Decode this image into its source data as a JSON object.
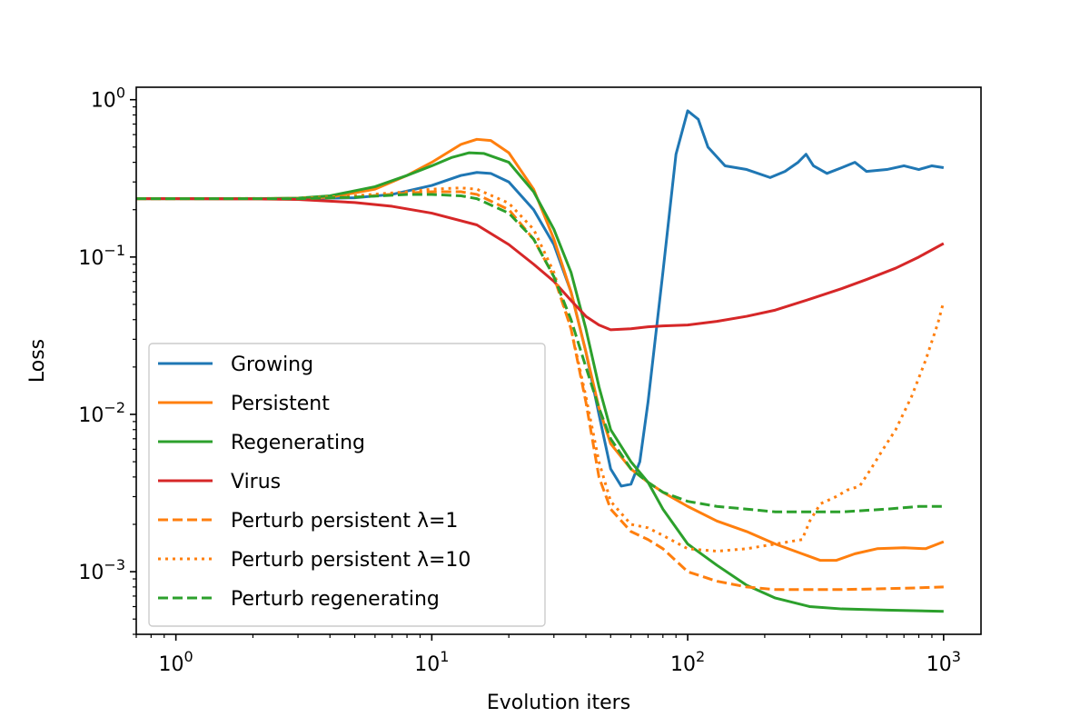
{
  "chart_data": {
    "type": "line",
    "title": "",
    "xlabel": "Evolution iters",
    "ylabel": "Loss",
    "xscale": "log",
    "yscale": "log",
    "xlim": [
      0.7,
      1400
    ],
    "ylim": [
      0.0004,
      1.2
    ],
    "grid": false,
    "legend_position": "lower-left",
    "x_ticks": [
      {
        "value": 1,
        "label": "10^0"
      },
      {
        "value": 10,
        "label": "10^1"
      },
      {
        "value": 100,
        "label": "10^2"
      },
      {
        "value": 1000,
        "label": "10^3"
      }
    ],
    "y_ticks": [
      {
        "value": 0.001,
        "label": "10^-3"
      },
      {
        "value": 0.01,
        "label": "10^-2"
      },
      {
        "value": 0.1,
        "label": "10^-1"
      },
      {
        "value": 1,
        "label": "10^0"
      }
    ],
    "series": [
      {
        "name": "Growing",
        "color": "#1f77b4",
        "dash": "solid",
        "points": [
          [
            0.7,
            0.235
          ],
          [
            1,
            0.235
          ],
          [
            2,
            0.235
          ],
          [
            3,
            0.235
          ],
          [
            5,
            0.238
          ],
          [
            7,
            0.25
          ],
          [
            10,
            0.285
          ],
          [
            13,
            0.33
          ],
          [
            15,
            0.345
          ],
          [
            17,
            0.34
          ],
          [
            20,
            0.3
          ],
          [
            25,
            0.2
          ],
          [
            30,
            0.12
          ],
          [
            35,
            0.06
          ],
          [
            40,
            0.025
          ],
          [
            45,
            0.01
          ],
          [
            50,
            0.0045
          ],
          [
            55,
            0.0035
          ],
          [
            60,
            0.0036
          ],
          [
            65,
            0.005
          ],
          [
            70,
            0.012
          ],
          [
            80,
            0.08
          ],
          [
            90,
            0.45
          ],
          [
            100,
            0.85
          ],
          [
            110,
            0.75
          ],
          [
            120,
            0.5
          ],
          [
            140,
            0.38
          ],
          [
            170,
            0.36
          ],
          [
            210,
            0.32
          ],
          [
            240,
            0.35
          ],
          [
            270,
            0.4
          ],
          [
            290,
            0.45
          ],
          [
            310,
            0.38
          ],
          [
            350,
            0.34
          ],
          [
            400,
            0.37
          ],
          [
            450,
            0.4
          ],
          [
            500,
            0.35
          ],
          [
            600,
            0.36
          ],
          [
            700,
            0.38
          ],
          [
            800,
            0.36
          ],
          [
            900,
            0.38
          ],
          [
            1000,
            0.37
          ]
        ]
      },
      {
        "name": "Persistent",
        "color": "#ff7f0e",
        "dash": "solid",
        "points": [
          [
            0.7,
            0.235
          ],
          [
            1,
            0.235
          ],
          [
            2,
            0.235
          ],
          [
            3,
            0.236
          ],
          [
            4,
            0.24
          ],
          [
            6,
            0.27
          ],
          [
            8,
            0.33
          ],
          [
            10,
            0.4
          ],
          [
            13,
            0.52
          ],
          [
            15,
            0.56
          ],
          [
            17,
            0.55
          ],
          [
            20,
            0.46
          ],
          [
            25,
            0.27
          ],
          [
            30,
            0.13
          ],
          [
            35,
            0.06
          ],
          [
            40,
            0.025
          ],
          [
            45,
            0.011
          ],
          [
            50,
            0.0065
          ],
          [
            60,
            0.0045
          ],
          [
            70,
            0.0037
          ],
          [
            80,
            0.0032
          ],
          [
            100,
            0.0026
          ],
          [
            130,
            0.0021
          ],
          [
            170,
            0.0018
          ],
          [
            220,
            0.0015
          ],
          [
            280,
            0.0013
          ],
          [
            330,
            0.00118
          ],
          [
            380,
            0.00118
          ],
          [
            450,
            0.0013
          ],
          [
            550,
            0.0014
          ],
          [
            700,
            0.00142
          ],
          [
            850,
            0.0014
          ],
          [
            1000,
            0.00155
          ]
        ]
      },
      {
        "name": "Regenerating",
        "color": "#2ca02c",
        "dash": "solid",
        "points": [
          [
            0.7,
            0.235
          ],
          [
            1,
            0.235
          ],
          [
            2,
            0.235
          ],
          [
            3,
            0.237
          ],
          [
            4,
            0.245
          ],
          [
            6,
            0.28
          ],
          [
            8,
            0.33
          ],
          [
            10,
            0.38
          ],
          [
            12,
            0.43
          ],
          [
            14,
            0.46
          ],
          [
            16,
            0.455
          ],
          [
            20,
            0.4
          ],
          [
            25,
            0.26
          ],
          [
            30,
            0.15
          ],
          [
            35,
            0.08
          ],
          [
            40,
            0.035
          ],
          [
            45,
            0.015
          ],
          [
            50,
            0.008
          ],
          [
            60,
            0.005
          ],
          [
            70,
            0.0037
          ],
          [
            80,
            0.0025
          ],
          [
            100,
            0.0015
          ],
          [
            130,
            0.0011
          ],
          [
            170,
            0.00082
          ],
          [
            220,
            0.00068
          ],
          [
            300,
            0.0006
          ],
          [
            400,
            0.00058
          ],
          [
            600,
            0.00057
          ],
          [
            1000,
            0.00056
          ]
        ]
      },
      {
        "name": "Virus",
        "color": "#d62728",
        "dash": "solid",
        "points": [
          [
            0.7,
            0.235
          ],
          [
            1,
            0.235
          ],
          [
            2,
            0.234
          ],
          [
            3,
            0.232
          ],
          [
            5,
            0.222
          ],
          [
            7,
            0.21
          ],
          [
            10,
            0.19
          ],
          [
            15,
            0.16
          ],
          [
            20,
            0.12
          ],
          [
            25,
            0.09
          ],
          [
            30,
            0.07
          ],
          [
            35,
            0.053
          ],
          [
            40,
            0.042
          ],
          [
            45,
            0.037
          ],
          [
            50,
            0.0345
          ],
          [
            60,
            0.035
          ],
          [
            70,
            0.036
          ],
          [
            80,
            0.0365
          ],
          [
            100,
            0.037
          ],
          [
            130,
            0.039
          ],
          [
            170,
            0.042
          ],
          [
            220,
            0.046
          ],
          [
            300,
            0.054
          ],
          [
            400,
            0.063
          ],
          [
            500,
            0.072
          ],
          [
            650,
            0.085
          ],
          [
            800,
            0.1
          ],
          [
            1000,
            0.122
          ]
        ]
      },
      {
        "name": "Perturb persistent λ=1",
        "color": "#ff7f0e",
        "dash": "dashed",
        "points": [
          [
            0.7,
            0.235
          ],
          [
            1,
            0.235
          ],
          [
            3,
            0.235
          ],
          [
            5,
            0.24
          ],
          [
            8,
            0.255
          ],
          [
            10,
            0.26
          ],
          [
            13,
            0.26
          ],
          [
            15,
            0.25
          ],
          [
            20,
            0.2
          ],
          [
            25,
            0.13
          ],
          [
            30,
            0.075
          ],
          [
            35,
            0.035
          ],
          [
            40,
            0.012
          ],
          [
            45,
            0.004
          ],
          [
            50,
            0.0025
          ],
          [
            60,
            0.0018
          ],
          [
            70,
            0.0016
          ],
          [
            80,
            0.0014
          ],
          [
            100,
            0.001
          ],
          [
            130,
            0.00087
          ],
          [
            170,
            0.0008
          ],
          [
            220,
            0.00077
          ],
          [
            300,
            0.00077
          ],
          [
            400,
            0.00077
          ],
          [
            600,
            0.00078
          ],
          [
            800,
            0.00079
          ],
          [
            1000,
            0.0008
          ]
        ]
      },
      {
        "name": "Perturb persistent λ=10",
        "color": "#ff7f0e",
        "dash": "dotted",
        "points": [
          [
            0.7,
            0.235
          ],
          [
            1,
            0.235
          ],
          [
            3,
            0.236
          ],
          [
            5,
            0.245
          ],
          [
            8,
            0.26
          ],
          [
            10,
            0.27
          ],
          [
            13,
            0.275
          ],
          [
            15,
            0.27
          ],
          [
            20,
            0.22
          ],
          [
            25,
            0.15
          ],
          [
            30,
            0.08
          ],
          [
            35,
            0.035
          ],
          [
            40,
            0.013
          ],
          [
            45,
            0.005
          ],
          [
            50,
            0.0028
          ],
          [
            60,
            0.002
          ],
          [
            70,
            0.0019
          ],
          [
            80,
            0.0017
          ],
          [
            100,
            0.0014
          ],
          [
            130,
            0.00135
          ],
          [
            170,
            0.0014
          ],
          [
            220,
            0.0015
          ],
          [
            280,
            0.0016
          ],
          [
            300,
            0.0021
          ],
          [
            330,
            0.0027
          ],
          [
            380,
            0.003
          ],
          [
            420,
            0.0033
          ],
          [
            470,
            0.0035
          ],
          [
            520,
            0.0045
          ],
          [
            580,
            0.006
          ],
          [
            650,
            0.008
          ],
          [
            750,
            0.013
          ],
          [
            850,
            0.022
          ],
          [
            950,
            0.038
          ],
          [
            1000,
            0.052
          ]
        ]
      },
      {
        "name": "Perturb regenerating",
        "color": "#2ca02c",
        "dash": "dashed",
        "points": [
          [
            0.7,
            0.235
          ],
          [
            1,
            0.235
          ],
          [
            3,
            0.235
          ],
          [
            5,
            0.24
          ],
          [
            8,
            0.25
          ],
          [
            10,
            0.25
          ],
          [
            13,
            0.245
          ],
          [
            15,
            0.235
          ],
          [
            20,
            0.19
          ],
          [
            25,
            0.13
          ],
          [
            30,
            0.075
          ],
          [
            35,
            0.04
          ],
          [
            40,
            0.02
          ],
          [
            45,
            0.011
          ],
          [
            50,
            0.007
          ],
          [
            60,
            0.0045
          ],
          [
            70,
            0.0037
          ],
          [
            80,
            0.0032
          ],
          [
            100,
            0.0028
          ],
          [
            130,
            0.0026
          ],
          [
            170,
            0.0025
          ],
          [
            220,
            0.0024
          ],
          [
            300,
            0.0024
          ],
          [
            400,
            0.0024
          ],
          [
            600,
            0.0025
          ],
          [
            800,
            0.0026
          ],
          [
            1000,
            0.0026
          ]
        ]
      }
    ]
  }
}
